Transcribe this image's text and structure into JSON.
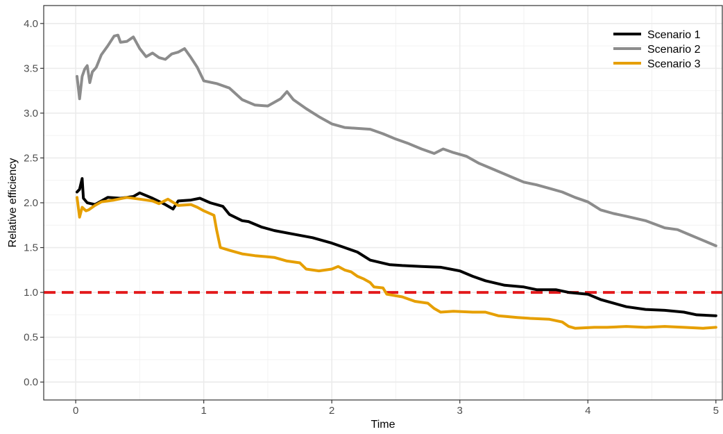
{
  "chart_data": {
    "type": "line",
    "xlabel": "Time",
    "ylabel": "Relative efficiency",
    "xlim": [
      -0.25,
      5.05
    ],
    "ylim": [
      -0.2,
      4.2
    ],
    "x_ticks": [
      0,
      1,
      2,
      3,
      4,
      5
    ],
    "x_tick_labels": [
      "0",
      "1",
      "2",
      "3",
      "4",
      "5"
    ],
    "y_ticks": [
      0,
      0.5,
      1,
      1.5,
      2,
      2.5,
      3,
      3.5,
      4
    ],
    "y_tick_labels": [
      "0.0",
      "0.5",
      "1.0",
      "1.5",
      "2.0",
      "2.5",
      "3.0",
      "3.5",
      "4.0"
    ],
    "grid": true,
    "legend_position": "top-right",
    "reference_line": {
      "y": 1.0,
      "style": "dashed",
      "color": "#e31a1c"
    },
    "series": [
      {
        "name": "Scenario 1",
        "color": "#000000",
        "points": [
          [
            0.01,
            2.12
          ],
          [
            0.03,
            2.15
          ],
          [
            0.05,
            2.27
          ],
          [
            0.06,
            2.05
          ],
          [
            0.09,
            2.0
          ],
          [
            0.15,
            1.98
          ],
          [
            0.25,
            2.06
          ],
          [
            0.35,
            2.05
          ],
          [
            0.45,
            2.07
          ],
          [
            0.5,
            2.11
          ],
          [
            0.6,
            2.05
          ],
          [
            0.7,
            1.98
          ],
          [
            0.76,
            1.93
          ],
          [
            0.8,
            2.02
          ],
          [
            0.9,
            2.03
          ],
          [
            0.97,
            2.05
          ],
          [
            1.05,
            2.0
          ],
          [
            1.15,
            1.96
          ],
          [
            1.2,
            1.87
          ],
          [
            1.3,
            1.8
          ],
          [
            1.35,
            1.79
          ],
          [
            1.45,
            1.73
          ],
          [
            1.55,
            1.69
          ],
          [
            1.7,
            1.65
          ],
          [
            1.85,
            1.61
          ],
          [
            2.0,
            1.55
          ],
          [
            2.1,
            1.5
          ],
          [
            2.2,
            1.45
          ],
          [
            2.3,
            1.36
          ],
          [
            2.45,
            1.31
          ],
          [
            2.55,
            1.3
          ],
          [
            2.7,
            1.29
          ],
          [
            2.85,
            1.28
          ],
          [
            3.0,
            1.24
          ],
          [
            3.1,
            1.18
          ],
          [
            3.2,
            1.13
          ],
          [
            3.35,
            1.08
          ],
          [
            3.5,
            1.06
          ],
          [
            3.6,
            1.03
          ],
          [
            3.75,
            1.03
          ],
          [
            3.85,
            1.0
          ],
          [
            4.0,
            0.98
          ],
          [
            4.1,
            0.92
          ],
          [
            4.2,
            0.88
          ],
          [
            4.3,
            0.84
          ],
          [
            4.45,
            0.81
          ],
          [
            4.6,
            0.8
          ],
          [
            4.75,
            0.78
          ],
          [
            4.85,
            0.75
          ],
          [
            5.0,
            0.74
          ]
        ]
      },
      {
        "name": "Scenario 2",
        "color": "#8c8c8c",
        "points": [
          [
            0.01,
            3.41
          ],
          [
            0.02,
            3.29
          ],
          [
            0.03,
            3.16
          ],
          [
            0.05,
            3.41
          ],
          [
            0.07,
            3.49
          ],
          [
            0.09,
            3.53
          ],
          [
            0.11,
            3.34
          ],
          [
            0.13,
            3.46
          ],
          [
            0.16,
            3.51
          ],
          [
            0.2,
            3.65
          ],
          [
            0.25,
            3.75
          ],
          [
            0.3,
            3.86
          ],
          [
            0.33,
            3.87
          ],
          [
            0.35,
            3.79
          ],
          [
            0.4,
            3.8
          ],
          [
            0.45,
            3.85
          ],
          [
            0.5,
            3.72
          ],
          [
            0.55,
            3.63
          ],
          [
            0.6,
            3.67
          ],
          [
            0.65,
            3.62
          ],
          [
            0.7,
            3.6
          ],
          [
            0.75,
            3.66
          ],
          [
            0.8,
            3.68
          ],
          [
            0.85,
            3.72
          ],
          [
            0.9,
            3.62
          ],
          [
            0.95,
            3.51
          ],
          [
            1.0,
            3.36
          ],
          [
            1.1,
            3.33
          ],
          [
            1.2,
            3.28
          ],
          [
            1.3,
            3.15
          ],
          [
            1.4,
            3.09
          ],
          [
            1.5,
            3.08
          ],
          [
            1.6,
            3.16
          ],
          [
            1.65,
            3.24
          ],
          [
            1.7,
            3.15
          ],
          [
            1.8,
            3.05
          ],
          [
            1.9,
            2.96
          ],
          [
            2.0,
            2.88
          ],
          [
            2.1,
            2.84
          ],
          [
            2.2,
            2.83
          ],
          [
            2.3,
            2.82
          ],
          [
            2.4,
            2.77
          ],
          [
            2.5,
            2.71
          ],
          [
            2.6,
            2.66
          ],
          [
            2.7,
            2.6
          ],
          [
            2.8,
            2.55
          ],
          [
            2.87,
            2.6
          ],
          [
            2.95,
            2.56
          ],
          [
            3.05,
            2.52
          ],
          [
            3.15,
            2.44
          ],
          [
            3.25,
            2.38
          ],
          [
            3.4,
            2.29
          ],
          [
            3.5,
            2.23
          ],
          [
            3.6,
            2.2
          ],
          [
            3.7,
            2.16
          ],
          [
            3.8,
            2.12
          ],
          [
            3.9,
            2.06
          ],
          [
            4.0,
            2.01
          ],
          [
            4.1,
            1.92
          ],
          [
            4.2,
            1.88
          ],
          [
            4.3,
            1.85
          ],
          [
            4.45,
            1.8
          ],
          [
            4.6,
            1.72
          ],
          [
            4.7,
            1.7
          ],
          [
            4.8,
            1.64
          ],
          [
            4.9,
            1.58
          ],
          [
            5.0,
            1.52
          ]
        ]
      },
      {
        "name": "Scenario 3",
        "color": "#e69f00",
        "points": [
          [
            0.01,
            2.06
          ],
          [
            0.03,
            1.84
          ],
          [
            0.05,
            1.95
          ],
          [
            0.08,
            1.91
          ],
          [
            0.1,
            1.92
          ],
          [
            0.15,
            1.97
          ],
          [
            0.2,
            2.01
          ],
          [
            0.3,
            2.03
          ],
          [
            0.4,
            2.06
          ],
          [
            0.5,
            2.04
          ],
          [
            0.6,
            2.02
          ],
          [
            0.65,
            1.99
          ],
          [
            0.72,
            2.04
          ],
          [
            0.8,
            1.97
          ],
          [
            0.9,
            1.98
          ],
          [
            0.95,
            1.95
          ],
          [
            1.0,
            1.91
          ],
          [
            1.08,
            1.86
          ],
          [
            1.1,
            1.7
          ],
          [
            1.13,
            1.5
          ],
          [
            1.2,
            1.47
          ],
          [
            1.3,
            1.43
          ],
          [
            1.4,
            1.41
          ],
          [
            1.55,
            1.39
          ],
          [
            1.65,
            1.35
          ],
          [
            1.75,
            1.33
          ],
          [
            1.8,
            1.26
          ],
          [
            1.9,
            1.24
          ],
          [
            2.0,
            1.26
          ],
          [
            2.05,
            1.29
          ],
          [
            2.1,
            1.25
          ],
          [
            2.15,
            1.23
          ],
          [
            2.2,
            1.18
          ],
          [
            2.25,
            1.15
          ],
          [
            2.3,
            1.11
          ],
          [
            2.33,
            1.06
          ],
          [
            2.4,
            1.05
          ],
          [
            2.43,
            0.98
          ],
          [
            2.55,
            0.95
          ],
          [
            2.65,
            0.9
          ],
          [
            2.75,
            0.88
          ],
          [
            2.8,
            0.82
          ],
          [
            2.85,
            0.78
          ],
          [
            2.95,
            0.79
          ],
          [
            3.1,
            0.78
          ],
          [
            3.2,
            0.78
          ],
          [
            3.3,
            0.74
          ],
          [
            3.45,
            0.72
          ],
          [
            3.55,
            0.71
          ],
          [
            3.7,
            0.7
          ],
          [
            3.8,
            0.67
          ],
          [
            3.85,
            0.62
          ],
          [
            3.9,
            0.6
          ],
          [
            4.05,
            0.61
          ],
          [
            4.15,
            0.61
          ],
          [
            4.3,
            0.62
          ],
          [
            4.45,
            0.61
          ],
          [
            4.6,
            0.62
          ],
          [
            4.75,
            0.61
          ],
          [
            4.9,
            0.6
          ],
          [
            5.0,
            0.61
          ]
        ]
      }
    ]
  }
}
